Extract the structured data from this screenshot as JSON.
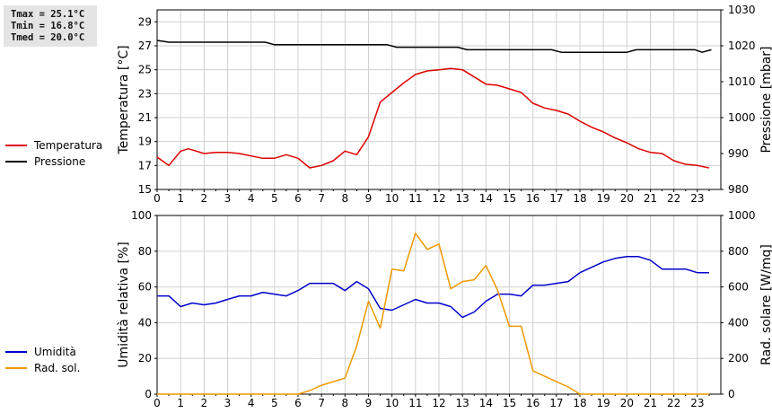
{
  "stats": {
    "tmax": "Tmax = 25.1°C",
    "tmin": "Tmin = 16.8°C",
    "tmed": "Tmed = 20.0°C"
  },
  "chart_data": [
    {
      "type": "line",
      "x_ticks": [
        "0",
        "1",
        "2",
        "3",
        "4",
        "5",
        "6",
        "7",
        "8",
        "9",
        "10",
        "11",
        "12",
        "13",
        "14",
        "15",
        "16",
        "17",
        "18",
        "19",
        "20",
        "21",
        "22",
        "23"
      ],
      "xlim": [
        0,
        24
      ],
      "left_axis": {
        "label": "Temperatura [°C]",
        "lim": [
          15,
          30
        ],
        "ticks": [
          "15",
          "17",
          "19",
          "21",
          "23",
          "25",
          "27",
          "29"
        ]
      },
      "right_axis": {
        "label": "Pressione [mbar]",
        "lim": [
          980,
          1030
        ],
        "ticks": [
          "980",
          "990",
          "1000",
          "1010",
          "1020",
          "1030"
        ]
      },
      "grid": true,
      "legend_position": "left-outside",
      "series": [
        {
          "name": "Temperatura",
          "axis": "left",
          "color": "#dd0000",
          "x": [
            0,
            0.5,
            1,
            1.33,
            1.67,
            2,
            2.5,
            3,
            3.5,
            4,
            4.5,
            5,
            5.5,
            6,
            6.5,
            7,
            7.5,
            8,
            8.5,
            9,
            9.5,
            10,
            10.5,
            11,
            11.5,
            12,
            12.5,
            13,
            13.5,
            14,
            14.5,
            15,
            15.5,
            16,
            16.5,
            17,
            17.5,
            18,
            18.5,
            19,
            19.5,
            20,
            20.5,
            21,
            21.5,
            22,
            22.5,
            23,
            23.5
          ],
          "values": [
            17.7,
            17.0,
            18.2,
            18.4,
            18.2,
            18.0,
            18.1,
            18.1,
            18.0,
            17.8,
            17.6,
            17.6,
            17.9,
            17.6,
            16.8,
            17.0,
            17.4,
            18.2,
            17.9,
            19.4,
            22.3,
            23.1,
            23.9,
            24.6,
            24.9,
            25.0,
            25.1,
            25.0,
            24.4,
            23.8,
            23.7,
            23.4,
            23.1,
            22.2,
            21.8,
            21.6,
            21.3,
            20.7,
            20.2,
            19.8,
            19.3,
            18.9,
            18.4,
            18.1,
            18.0,
            17.4,
            17.1,
            17.0,
            16.8
          ]
        },
        {
          "name": "Pressione",
          "axis": "right",
          "color": "#000000",
          "x": [
            0,
            0.5,
            4.6,
            5,
            9.8,
            10.2,
            12.8,
            13.2,
            16.8,
            17.2,
            20,
            20.4,
            22.9,
            23.2,
            23.6
          ],
          "values": [
            1021.5,
            1021,
            1021,
            1020.3,
            1020.3,
            1019.6,
            1019.6,
            1018.9,
            1018.9,
            1018.2,
            1018.2,
            1018.9,
            1018.9,
            1018.2,
            1018.9
          ]
        }
      ]
    },
    {
      "type": "line",
      "x_ticks": [
        "0",
        "1",
        "2",
        "3",
        "4",
        "5",
        "6",
        "7",
        "8",
        "9",
        "10",
        "11",
        "12",
        "13",
        "14",
        "15",
        "16",
        "17",
        "18",
        "19",
        "20",
        "21",
        "22",
        "23"
      ],
      "xlim": [
        0,
        24
      ],
      "left_axis": {
        "label": "Umidità relativa [%]",
        "lim": [
          0,
          100
        ],
        "ticks": [
          "0",
          "20",
          "40",
          "60",
          "80",
          "100"
        ]
      },
      "right_axis": {
        "label": "Rad. solare [W/mq]",
        "lim": [
          0,
          1000
        ],
        "ticks": [
          "0",
          "200",
          "400",
          "600",
          "800",
          "1000"
        ]
      },
      "grid": true,
      "legend_position": "left-outside",
      "series": [
        {
          "name": "Umidità",
          "axis": "left",
          "color": "#0000cc",
          "x": [
            0,
            0.5,
            1,
            1.5,
            2,
            2.5,
            3,
            3.5,
            4,
            4.5,
            5,
            5.5,
            6,
            6.5,
            7,
            7.5,
            8,
            8.5,
            9,
            9.5,
            10,
            10.5,
            11,
            11.5,
            12,
            12.5,
            13,
            13.5,
            14,
            14.5,
            15,
            15.5,
            16,
            16.5,
            17,
            17.5,
            18,
            18.5,
            19,
            19.5,
            20,
            20.5,
            21,
            21.5,
            22,
            22.5,
            23,
            23.5
          ],
          "values": [
            55,
            55,
            49,
            51,
            50,
            51,
            53,
            55,
            55,
            57,
            56,
            55,
            58,
            62,
            62,
            62,
            58,
            63,
            59,
            48,
            47,
            50,
            53,
            51,
            51,
            49,
            43,
            46,
            52,
            56,
            56,
            55,
            61,
            61,
            62,
            63,
            68,
            71,
            74,
            76,
            77,
            77,
            75,
            70,
            70,
            70,
            68,
            68
          ]
        },
        {
          "name": "Rad. sol.",
          "axis": "right",
          "color": "#ee9900",
          "x": [
            0,
            6,
            6.5,
            7,
            7.5,
            8,
            8.5,
            9,
            9.5,
            10,
            10.5,
            11,
            11.5,
            12,
            12.5,
            13,
            13.5,
            14,
            14.5,
            15,
            15.5,
            16,
            16.5,
            17,
            17.5,
            18,
            18.5,
            19,
            20,
            21,
            22,
            23,
            23.5
          ],
          "values": [
            0,
            0,
            20,
            50,
            70,
            90,
            270,
            520,
            370,
            700,
            690,
            900,
            810,
            840,
            590,
            630,
            640,
            720,
            580,
            380,
            380,
            130,
            100,
            70,
            40,
            0,
            0,
            0,
            0,
            0,
            0,
            0,
            0
          ]
        }
      ]
    }
  ]
}
